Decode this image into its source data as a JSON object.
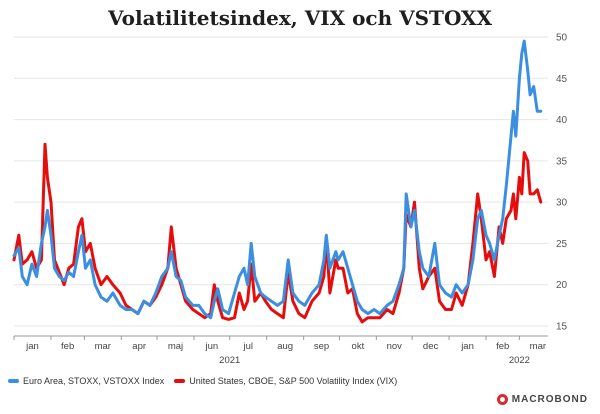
{
  "chart_data": {
    "type": "line",
    "title": "Volatilitetsindex, VIX och VSTOXX",
    "yaxis_position": "right",
    "ylim": [
      15,
      50
    ],
    "yticks": [
      15,
      20,
      25,
      30,
      35,
      40,
      45,
      50
    ],
    "grid": "horizontal",
    "x_month_labels": [
      "jan",
      "feb",
      "mar",
      "apr",
      "maj",
      "jun",
      "jul",
      "aug",
      "sep",
      "okt",
      "nov",
      "dec",
      "jan",
      "feb",
      "mar"
    ],
    "x_year_labels": [
      {
        "label": "2021",
        "between": [
          "jun",
          "jul"
        ]
      },
      {
        "label": "2022",
        "between": [
          "feb",
          "mar"
        ]
      }
    ],
    "series": [
      {
        "name": "Euro Area, STOXX, VSTOXX Index",
        "color": "#3b8fe0",
        "points": [
          [
            "2021-01-01",
            23.5
          ],
          [
            "2021-01-05",
            24.5
          ],
          [
            "2021-01-08",
            21
          ],
          [
            "2021-01-12",
            20
          ],
          [
            "2021-01-16",
            22.5
          ],
          [
            "2021-01-20",
            21
          ],
          [
            "2021-01-24",
            25
          ],
          [
            "2021-01-27",
            27
          ],
          [
            "2021-01-29",
            29
          ],
          [
            "2021-02-01",
            26
          ],
          [
            "2021-02-04",
            22
          ],
          [
            "2021-02-08",
            21
          ],
          [
            "2021-02-12",
            20.5
          ],
          [
            "2021-02-16",
            21.5
          ],
          [
            "2021-02-20",
            21
          ],
          [
            "2021-02-24",
            24
          ],
          [
            "2021-02-27",
            26
          ],
          [
            "2021-03-02",
            22
          ],
          [
            "2021-03-06",
            23
          ],
          [
            "2021-03-10",
            20
          ],
          [
            "2021-03-15",
            18.5
          ],
          [
            "2021-03-20",
            18
          ],
          [
            "2021-03-25",
            19
          ],
          [
            "2021-03-31",
            17.5
          ],
          [
            "2021-04-05",
            17
          ],
          [
            "2021-04-10",
            17
          ],
          [
            "2021-04-15",
            16.5
          ],
          [
            "2021-04-20",
            18
          ],
          [
            "2021-04-25",
            17.5
          ],
          [
            "2021-04-30",
            19
          ],
          [
            "2021-05-05",
            21
          ],
          [
            "2021-05-10",
            22
          ],
          [
            "2021-05-13",
            24
          ],
          [
            "2021-05-17",
            21
          ],
          [
            "2021-05-21",
            20.5
          ],
          [
            "2021-05-25",
            18.5
          ],
          [
            "2021-05-31",
            17.5
          ],
          [
            "2021-06-05",
            17.5
          ],
          [
            "2021-06-10",
            16.5
          ],
          [
            "2021-06-15",
            16
          ],
          [
            "2021-06-18",
            18
          ],
          [
            "2021-06-21",
            19.5
          ],
          [
            "2021-06-25",
            17
          ],
          [
            "2021-06-30",
            16.5
          ],
          [
            "2021-07-05",
            19
          ],
          [
            "2021-07-09",
            21
          ],
          [
            "2021-07-13",
            22
          ],
          [
            "2021-07-16",
            20
          ],
          [
            "2021-07-19",
            25
          ],
          [
            "2021-07-22",
            21
          ],
          [
            "2021-07-27",
            19
          ],
          [
            "2021-07-31",
            18.5
          ],
          [
            "2021-08-05",
            18
          ],
          [
            "2021-08-10",
            17.5
          ],
          [
            "2021-08-15",
            18
          ],
          [
            "2021-08-19",
            23
          ],
          [
            "2021-08-23",
            19
          ],
          [
            "2021-08-28",
            18
          ],
          [
            "2021-09-02",
            17.5
          ],
          [
            "2021-09-08",
            19
          ],
          [
            "2021-09-14",
            20
          ],
          [
            "2021-09-18",
            23
          ],
          [
            "2021-09-20",
            26
          ],
          [
            "2021-09-23",
            22
          ],
          [
            "2021-09-28",
            24
          ],
          [
            "2021-09-30",
            23
          ],
          [
            "2021-10-04",
            24
          ],
          [
            "2021-10-08",
            22
          ],
          [
            "2021-10-12",
            20
          ],
          [
            "2021-10-16",
            18
          ],
          [
            "2021-10-20",
            17
          ],
          [
            "2021-10-25",
            16.5
          ],
          [
            "2021-10-30",
            17
          ],
          [
            "2021-11-04",
            16.5
          ],
          [
            "2021-11-10",
            17.5
          ],
          [
            "2021-11-15",
            18
          ],
          [
            "2021-11-20",
            20
          ],
          [
            "2021-11-24",
            22
          ],
          [
            "2021-11-26",
            31
          ],
          [
            "2021-11-30",
            27
          ],
          [
            "2021-12-03",
            29
          ],
          [
            "2021-12-07",
            24
          ],
          [
            "2021-12-10",
            22
          ],
          [
            "2021-12-15",
            21
          ],
          [
            "2021-12-20",
            25
          ],
          [
            "2021-12-24",
            20
          ],
          [
            "2021-12-29",
            19
          ],
          [
            "2022-01-03",
            18.5
          ],
          [
            "2022-01-07",
            20
          ],
          [
            "2022-01-12",
            19
          ],
          [
            "2022-01-17",
            20
          ],
          [
            "2022-01-21",
            23
          ],
          [
            "2022-01-25",
            28
          ],
          [
            "2022-01-28",
            29
          ],
          [
            "2022-02-01",
            26
          ],
          [
            "2022-02-04",
            25
          ],
          [
            "2022-02-08",
            23
          ],
          [
            "2022-02-12",
            26
          ],
          [
            "2022-02-15",
            28
          ],
          [
            "2022-02-18",
            32
          ],
          [
            "2022-02-22",
            38
          ],
          [
            "2022-02-24",
            41
          ],
          [
            "2022-02-26",
            38
          ],
          [
            "2022-03-01",
            45
          ],
          [
            "2022-03-03",
            48
          ],
          [
            "2022-03-05",
            49.5
          ],
          [
            "2022-03-08",
            46
          ],
          [
            "2022-03-10",
            43
          ],
          [
            "2022-03-13",
            44
          ],
          [
            "2022-03-16",
            41
          ],
          [
            "2022-03-19",
            41
          ]
        ]
      },
      {
        "name": "United States, CBOE, S&P 500 Volatility Index (VIX)",
        "color": "#e60d0d",
        "points": [
          [
            "2021-01-01",
            23
          ],
          [
            "2021-01-05",
            26
          ],
          [
            "2021-01-08",
            22.5
          ],
          [
            "2021-01-12",
            23
          ],
          [
            "2021-01-16",
            24
          ],
          [
            "2021-01-20",
            22
          ],
          [
            "2021-01-24",
            23
          ],
          [
            "2021-01-27",
            37
          ],
          [
            "2021-01-29",
            33
          ],
          [
            "2021-02-01",
            30
          ],
          [
            "2021-02-04",
            23
          ],
          [
            "2021-02-08",
            21.5
          ],
          [
            "2021-02-12",
            20
          ],
          [
            "2021-02-16",
            22
          ],
          [
            "2021-02-20",
            22.5
          ],
          [
            "2021-02-24",
            27
          ],
          [
            "2021-02-27",
            28
          ],
          [
            "2021-03-02",
            24
          ],
          [
            "2021-03-06",
            25
          ],
          [
            "2021-03-10",
            22
          ],
          [
            "2021-03-15",
            20
          ],
          [
            "2021-03-20",
            21
          ],
          [
            "2021-03-25",
            20
          ],
          [
            "2021-03-31",
            19
          ],
          [
            "2021-04-05",
            17.5
          ],
          [
            "2021-04-10",
            17
          ],
          [
            "2021-04-15",
            16.5
          ],
          [
            "2021-04-20",
            18
          ],
          [
            "2021-04-25",
            17.5
          ],
          [
            "2021-04-30",
            18.5
          ],
          [
            "2021-05-05",
            20
          ],
          [
            "2021-05-10",
            22
          ],
          [
            "2021-05-13",
            27
          ],
          [
            "2021-05-17",
            22
          ],
          [
            "2021-05-21",
            20
          ],
          [
            "2021-05-25",
            18
          ],
          [
            "2021-05-31",
            17
          ],
          [
            "2021-06-05",
            16.5
          ],
          [
            "2021-06-10",
            16
          ],
          [
            "2021-06-15",
            16.5
          ],
          [
            "2021-06-18",
            20
          ],
          [
            "2021-06-21",
            18
          ],
          [
            "2021-06-25",
            16
          ],
          [
            "2021-06-30",
            15.8
          ],
          [
            "2021-07-05",
            16
          ],
          [
            "2021-07-09",
            19
          ],
          [
            "2021-07-13",
            17
          ],
          [
            "2021-07-16",
            18
          ],
          [
            "2021-07-19",
            22.5
          ],
          [
            "2021-07-22",
            18
          ],
          [
            "2021-07-27",
            19
          ],
          [
            "2021-07-31",
            18
          ],
          [
            "2021-08-05",
            17
          ],
          [
            "2021-08-10",
            16.5
          ],
          [
            "2021-08-15",
            16
          ],
          [
            "2021-08-19",
            21.5
          ],
          [
            "2021-08-23",
            18
          ],
          [
            "2021-08-28",
            16.5
          ],
          [
            "2021-09-02",
            16
          ],
          [
            "2021-09-08",
            18
          ],
          [
            "2021-09-14",
            19
          ],
          [
            "2021-09-18",
            21
          ],
          [
            "2021-09-20",
            25.5
          ],
          [
            "2021-09-23",
            19
          ],
          [
            "2021-09-28",
            23
          ],
          [
            "2021-09-30",
            22
          ],
          [
            "2021-10-04",
            22
          ],
          [
            "2021-10-08",
            19
          ],
          [
            "2021-10-12",
            19.5
          ],
          [
            "2021-10-16",
            16.5
          ],
          [
            "2021-10-20",
            15.5
          ],
          [
            "2021-10-25",
            16
          ],
          [
            "2021-10-30",
            16
          ],
          [
            "2021-11-04",
            16
          ],
          [
            "2021-11-10",
            17
          ],
          [
            "2021-11-15",
            16.5
          ],
          [
            "2021-11-20",
            19
          ],
          [
            "2021-11-24",
            22
          ],
          [
            "2021-11-26",
            28.5
          ],
          [
            "2021-11-30",
            27
          ],
          [
            "2021-12-03",
            30
          ],
          [
            "2021-12-07",
            22
          ],
          [
            "2021-12-10",
            19.5
          ],
          [
            "2021-12-15",
            21
          ],
          [
            "2021-12-20",
            22
          ],
          [
            "2021-12-24",
            18
          ],
          [
            "2021-12-29",
            17
          ],
          [
            "2022-01-03",
            17
          ],
          [
            "2022-01-07",
            19
          ],
          [
            "2022-01-12",
            17.5
          ],
          [
            "2022-01-17",
            20
          ],
          [
            "2022-01-21",
            25
          ],
          [
            "2022-01-25",
            31
          ],
          [
            "2022-01-28",
            28
          ],
          [
            "2022-02-01",
            23
          ],
          [
            "2022-02-04",
            24
          ],
          [
            "2022-02-08",
            21
          ],
          [
            "2022-02-12",
            27
          ],
          [
            "2022-02-15",
            25
          ],
          [
            "2022-02-18",
            28
          ],
          [
            "2022-02-22",
            29
          ],
          [
            "2022-02-24",
            31
          ],
          [
            "2022-02-26",
            28
          ],
          [
            "2022-03-01",
            33
          ],
          [
            "2022-03-03",
            31
          ],
          [
            "2022-03-05",
            36
          ],
          [
            "2022-03-08",
            35
          ],
          [
            "2022-03-10",
            31
          ],
          [
            "2022-03-13",
            31
          ],
          [
            "2022-03-16",
            31.5
          ],
          [
            "2022-03-19",
            30
          ]
        ]
      }
    ]
  },
  "brand": "MACROBOND"
}
